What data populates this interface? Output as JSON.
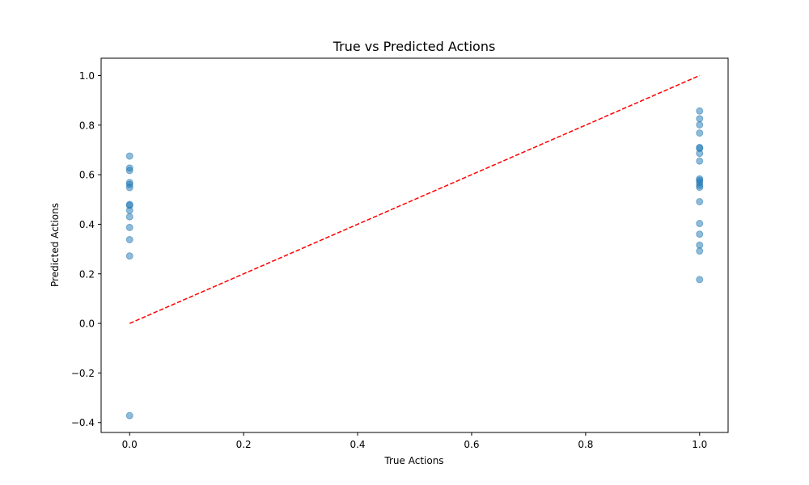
{
  "chart_data": {
    "type": "scatter",
    "title": "True vs Predicted Actions",
    "xlabel": "True Actions",
    "ylabel": "Predicted Actions",
    "xlim": [
      -0.05,
      1.05
    ],
    "ylim": [
      -0.44,
      1.07
    ],
    "xticks": [
      0.0,
      0.2,
      0.4,
      0.6,
      0.8,
      1.0
    ],
    "xtick_labels": [
      "0.0",
      "0.2",
      "0.4",
      "0.6",
      "0.8",
      "1.0"
    ],
    "yticks": [
      -0.4,
      -0.2,
      0.0,
      0.2,
      0.4,
      0.6,
      0.8,
      1.0
    ],
    "ytick_labels": [
      "−0.4",
      "−0.2",
      "0.0",
      "0.2",
      "0.4",
      "0.6",
      "0.8",
      "1.0"
    ],
    "grid": false,
    "marker_color": "#1f77b4",
    "marker_opacity": 0.5,
    "reference_line": {
      "x": [
        0,
        1
      ],
      "y": [
        0,
        1
      ],
      "color": "#ff0000",
      "style": "dashed"
    },
    "series": [
      {
        "points": [
          [
            0,
            0.675
          ],
          [
            0,
            0.627
          ],
          [
            0,
            0.617
          ],
          [
            0,
            0.568
          ],
          [
            0,
            0.56
          ],
          [
            0,
            0.548
          ],
          [
            0,
            0.48
          ],
          [
            0,
            0.476
          ],
          [
            0,
            0.456
          ],
          [
            0,
            0.43
          ],
          [
            0,
            0.387
          ],
          [
            0,
            0.338
          ],
          [
            0,
            0.272
          ],
          [
            0,
            -0.372
          ],
          [
            1,
            0.857
          ],
          [
            1,
            0.826
          ],
          [
            1,
            0.801
          ],
          [
            1,
            0.768
          ],
          [
            1,
            0.71
          ],
          [
            1,
            0.706
          ],
          [
            1,
            0.686
          ],
          [
            1,
            0.655
          ],
          [
            1,
            0.583
          ],
          [
            1,
            0.577
          ],
          [
            1,
            0.568
          ],
          [
            1,
            0.557
          ],
          [
            1,
            0.549
          ],
          [
            1,
            0.491
          ],
          [
            1,
            0.403
          ],
          [
            1,
            0.36
          ],
          [
            1,
            0.316
          ],
          [
            1,
            0.292
          ],
          [
            1,
            0.177
          ]
        ]
      }
    ]
  }
}
